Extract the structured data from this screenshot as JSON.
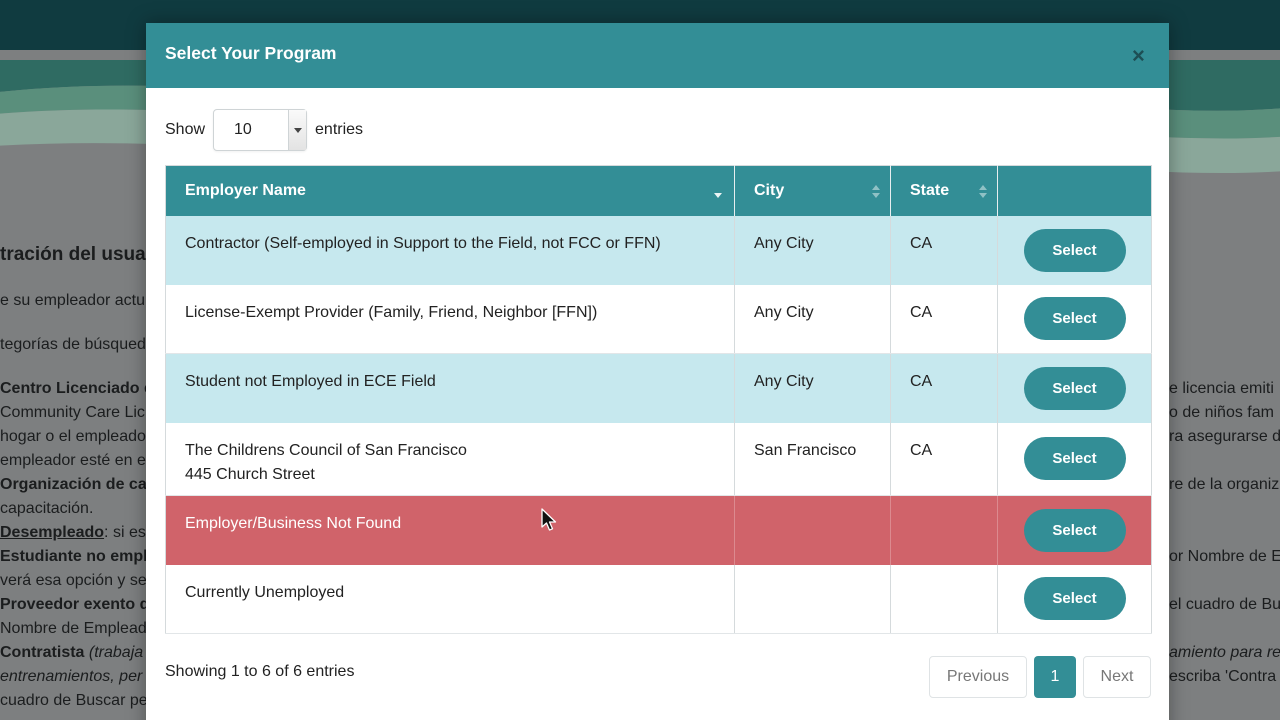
{
  "background": {
    "title_fragment": "tración del usua",
    "line1": "e su empleador actu",
    "line2": "tegorías de búsqued",
    "left_lines": [
      {
        "bold": "Centro Licenciado",
        "rest": " o"
      },
      {
        "bold": "",
        "rest": "Community Care Lic"
      },
      {
        "bold": "",
        "rest": "hogar o el empleado"
      },
      {
        "bold": "",
        "rest": "empleador esté en e"
      },
      {
        "bold": "Organización de ca",
        "rest": ""
      },
      {
        "bold": "",
        "rest": "capacitación."
      },
      {
        "bold": "Desempleado",
        "rest": ": si es"
      },
      {
        "bold": "Estudiante no empl",
        "rest": ""
      },
      {
        "bold": "",
        "rest": "verá esa opción y se"
      },
      {
        "bold": "Proveedor exento d",
        "rest": ""
      },
      {
        "bold": "",
        "rest": "Nombre de Emplead"
      },
      {
        "bold": "Contratista",
        "rest": " (trabaja",
        "italic": true
      },
      {
        "bold": "",
        "rest": "entrenamientos, per",
        "italic": true
      },
      {
        "bold": "",
        "rest": "cuadro de Buscar pe"
      }
    ],
    "right_lines": [
      "e licencia emiti",
      "o de niños fam",
      "ra asegurarse d",
      "",
      "re de la organiz",
      "",
      "",
      "or Nombre de E",
      "",
      "el cuadro de Bu",
      "",
      "amiento para re",
      "escriba 'Contra",
      ""
    ]
  },
  "modal": {
    "title": "Select Your Program",
    "close_label": "×",
    "length": {
      "show_label": "Show",
      "value": "10",
      "entries_label": "entries"
    },
    "columns": [
      "Employer Name",
      "City",
      "State",
      ""
    ],
    "rows": [
      {
        "name": "Contractor (Self-employed in Support to the Field, not FCC or FFN)",
        "address": "",
        "city": "Any City",
        "state": "CA",
        "action": "Select",
        "style": "shaded"
      },
      {
        "name": "License-Exempt Provider (Family, Friend, Neighbor [FFN])",
        "address": "",
        "city": "Any City",
        "state": "CA",
        "action": "Select",
        "style": "plain"
      },
      {
        "name": "Student not Employed in ECE Field",
        "address": "",
        "city": "Any City",
        "state": "CA",
        "action": "Select",
        "style": "shaded"
      },
      {
        "name": "The Childrens Council of San Francisco",
        "address": "445 Church Street",
        "city": "San Francisco",
        "state": "CA",
        "action": "Select",
        "style": "plain"
      },
      {
        "name": "Employer/Business Not Found",
        "address": "",
        "city": "",
        "state": "",
        "action": "Select",
        "style": "danger"
      },
      {
        "name": "Currently Unemployed",
        "address": "",
        "city": "",
        "state": "",
        "action": "Select",
        "style": "plain"
      }
    ],
    "info": "Showing 1 to 6 of 6 entries",
    "pagination": {
      "previous": "Previous",
      "current": "1",
      "next": "Next"
    }
  },
  "colors": {
    "accent": "#338e96",
    "row_shaded": "#c6e8ee",
    "row_danger": "#d0636a",
    "topbar": "#103b40"
  },
  "icons": {
    "close": "close-icon",
    "caret": "chevron-down-icon",
    "sort": "sort-icon",
    "cursor": "mouse-cursor-icon"
  }
}
